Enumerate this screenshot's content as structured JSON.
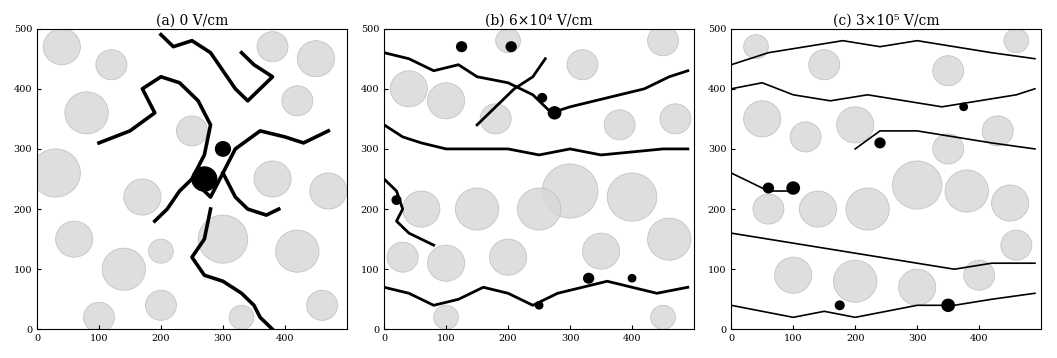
{
  "chart_data": [
    {
      "type": "image",
      "title": "(a) 0 V/cm",
      "color": "#000000",
      "xlim": [
        0,
        500
      ],
      "ylim": [
        0,
        500
      ],
      "xticks": [
        0,
        100,
        200,
        300,
        400
      ],
      "yticks": [
        0,
        100,
        200,
        300,
        400,
        500
      ],
      "circles": [
        [
          40,
          470,
          30
        ],
        [
          120,
          440,
          25
        ],
        [
          80,
          360,
          35
        ],
        [
          30,
          260,
          40
        ],
        [
          60,
          150,
          30
        ],
        [
          140,
          100,
          35
        ],
        [
          200,
          40,
          25
        ],
        [
          300,
          150,
          40
        ],
        [
          380,
          250,
          30
        ],
        [
          420,
          130,
          35
        ],
        [
          460,
          40,
          25
        ],
        [
          450,
          450,
          30
        ],
        [
          380,
          470,
          25
        ],
        [
          250,
          330,
          25
        ],
        [
          170,
          220,
          30
        ],
        [
          330,
          20,
          20
        ],
        [
          470,
          230,
          30
        ],
        [
          100,
          20,
          25
        ],
        [
          200,
          130,
          20
        ],
        [
          420,
          380,
          25
        ]
      ],
      "paths": [
        [
          [
            100,
            310
          ],
          [
            150,
            330
          ],
          [
            190,
            360
          ],
          [
            170,
            400
          ],
          [
            200,
            420
          ],
          [
            230,
            410
          ],
          [
            260,
            380
          ],
          [
            280,
            340
          ],
          [
            270,
            290
          ],
          [
            250,
            250
          ],
          [
            280,
            220
          ],
          [
            300,
            260
          ],
          [
            320,
            300
          ],
          [
            360,
            330
          ],
          [
            400,
            320
          ],
          [
            430,
            310
          ],
          [
            470,
            330
          ]
        ],
        [
          [
            200,
            490
          ],
          [
            220,
            470
          ],
          [
            250,
            480
          ],
          [
            280,
            460
          ],
          [
            300,
            430
          ],
          [
            320,
            400
          ],
          [
            340,
            380
          ],
          [
            360,
            400
          ],
          [
            380,
            420
          ],
          [
            350,
            440
          ],
          [
            330,
            460
          ]
        ],
        [
          [
            250,
            250
          ],
          [
            230,
            230
          ],
          [
            210,
            200
          ],
          [
            190,
            180
          ]
        ],
        [
          [
            300,
            260
          ],
          [
            320,
            220
          ],
          [
            340,
            200
          ],
          [
            370,
            190
          ],
          [
            390,
            200
          ]
        ],
        [
          [
            280,
            200
          ],
          [
            270,
            150
          ],
          [
            250,
            120
          ],
          [
            270,
            90
          ],
          [
            300,
            80
          ],
          [
            330,
            60
          ],
          [
            350,
            40
          ],
          [
            360,
            20
          ],
          [
            380,
            0
          ]
        ]
      ],
      "blobs": [
        [
          270,
          250,
          20
        ],
        [
          300,
          300,
          12
        ]
      ]
    },
    {
      "type": "image",
      "title": "(b) 6×10⁴ V/cm",
      "color": "#000000",
      "xlim": [
        0,
        500
      ],
      "ylim": [
        0,
        500
      ],
      "xticks": [
        0,
        100,
        200,
        300,
        400
      ],
      "yticks": [
        0,
        100,
        200,
        300,
        400,
        500
      ],
      "circles": [
        [
          40,
          400,
          30
        ],
        [
          100,
          380,
          30
        ],
        [
          180,
          350,
          25
        ],
        [
          300,
          230,
          45
        ],
        [
          250,
          200,
          35
        ],
        [
          150,
          200,
          35
        ],
        [
          60,
          200,
          30
        ],
        [
          400,
          220,
          40
        ],
        [
          460,
          150,
          35
        ],
        [
          350,
          130,
          30
        ],
        [
          200,
          120,
          30
        ],
        [
          100,
          110,
          30
        ],
        [
          30,
          120,
          25
        ],
        [
          470,
          350,
          25
        ],
        [
          380,
          340,
          25
        ],
        [
          320,
          440,
          25
        ],
        [
          450,
          480,
          25
        ],
        [
          200,
          480,
          20
        ],
        [
          100,
          20,
          20
        ],
        [
          450,
          20,
          20
        ]
      ],
      "paths": [
        [
          [
            0,
            460
          ],
          [
            40,
            450
          ],
          [
            80,
            430
          ],
          [
            120,
            440
          ],
          [
            150,
            420
          ],
          [
            200,
            410
          ],
          [
            240,
            390
          ],
          [
            270,
            360
          ],
          [
            300,
            370
          ],
          [
            340,
            380
          ],
          [
            380,
            390
          ],
          [
            420,
            400
          ],
          [
            460,
            420
          ],
          [
            490,
            430
          ]
        ],
        [
          [
            0,
            340
          ],
          [
            30,
            320
          ],
          [
            60,
            310
          ],
          [
            100,
            300
          ],
          [
            150,
            300
          ],
          [
            200,
            300
          ],
          [
            250,
            290
          ],
          [
            300,
            300
          ],
          [
            350,
            290
          ],
          [
            400,
            295
          ],
          [
            450,
            300
          ],
          [
            490,
            300
          ]
        ],
        [
          [
            0,
            250
          ],
          [
            20,
            230
          ],
          [
            30,
            200
          ],
          [
            20,
            180
          ],
          [
            40,
            160
          ],
          [
            80,
            140
          ]
        ],
        [
          [
            0,
            70
          ],
          [
            40,
            60
          ],
          [
            80,
            40
          ],
          [
            120,
            50
          ],
          [
            160,
            70
          ],
          [
            200,
            60
          ],
          [
            240,
            40
          ],
          [
            280,
            60
          ],
          [
            320,
            70
          ],
          [
            360,
            80
          ],
          [
            400,
            70
          ],
          [
            440,
            60
          ],
          [
            490,
            70
          ]
        ],
        [
          [
            150,
            340
          ],
          [
            180,
            370
          ],
          [
            210,
            400
          ],
          [
            240,
            420
          ],
          [
            260,
            450
          ]
        ]
      ],
      "blobs": [
        [
          125,
          470,
          8
        ],
        [
          205,
          470,
          8
        ],
        [
          275,
          360,
          10
        ],
        [
          255,
          385,
          7
        ],
        [
          20,
          215,
          7
        ],
        [
          330,
          85,
          8
        ],
        [
          400,
          85,
          6
        ],
        [
          250,
          40,
          6
        ]
      ]
    },
    {
      "type": "image",
      "title": "(c) 3×10⁵ V/cm",
      "color": "#000000",
      "xlim": [
        0,
        500
      ],
      "ylim": [
        0,
        500
      ],
      "xticks": [
        0,
        100,
        200,
        300,
        400
      ],
      "yticks": [
        0,
        100,
        200,
        300,
        400,
        500
      ],
      "circles": [
        [
          50,
          350,
          30
        ],
        [
          120,
          320,
          25
        ],
        [
          200,
          340,
          30
        ],
        [
          300,
          240,
          40
        ],
        [
          380,
          230,
          35
        ],
        [
          450,
          210,
          30
        ],
        [
          220,
          200,
          35
        ],
        [
          140,
          200,
          30
        ],
        [
          60,
          200,
          25
        ],
        [
          100,
          90,
          30
        ],
        [
          200,
          80,
          35
        ],
        [
          300,
          70,
          30
        ],
        [
          400,
          90,
          25
        ],
        [
          460,
          140,
          25
        ],
        [
          350,
          300,
          25
        ],
        [
          430,
          330,
          25
        ],
        [
          150,
          440,
          25
        ],
        [
          350,
          430,
          25
        ],
        [
          40,
          470,
          20
        ],
        [
          460,
          480,
          20
        ]
      ],
      "paths": [
        [
          [
            0,
            440
          ],
          [
            60,
            460
          ],
          [
            120,
            470
          ],
          [
            180,
            480
          ],
          [
            240,
            470
          ],
          [
            300,
            480
          ],
          [
            360,
            470
          ],
          [
            420,
            460
          ],
          [
            490,
            450
          ]
        ],
        [
          [
            0,
            400
          ],
          [
            50,
            410
          ],
          [
            100,
            390
          ],
          [
            160,
            380
          ],
          [
            220,
            390
          ],
          [
            280,
            380
          ],
          [
            340,
            370
          ],
          [
            400,
            380
          ],
          [
            460,
            390
          ],
          [
            490,
            400
          ]
        ],
        [
          [
            0,
            260
          ],
          [
            20,
            250
          ],
          [
            40,
            240
          ],
          [
            60,
            230
          ],
          [
            100,
            230
          ]
        ],
        [
          [
            0,
            160
          ],
          [
            60,
            150
          ],
          [
            120,
            140
          ],
          [
            180,
            130
          ],
          [
            240,
            120
          ],
          [
            300,
            110
          ],
          [
            360,
            100
          ],
          [
            420,
            110
          ],
          [
            490,
            110
          ]
        ],
        [
          [
            0,
            40
          ],
          [
            50,
            30
          ],
          [
            100,
            20
          ],
          [
            150,
            30
          ],
          [
            200,
            20
          ],
          [
            250,
            30
          ],
          [
            300,
            40
          ],
          [
            360,
            40
          ],
          [
            420,
            50
          ],
          [
            490,
            60
          ]
        ],
        [
          [
            200,
            300
          ],
          [
            240,
            330
          ],
          [
            300,
            330
          ],
          [
            360,
            320
          ],
          [
            420,
            310
          ],
          [
            490,
            300
          ]
        ]
      ],
      "blobs": [
        [
          100,
          235,
          10
        ],
        [
          60,
          235,
          8
        ],
        [
          240,
          310,
          8
        ],
        [
          175,
          40,
          7
        ],
        [
          350,
          40,
          10
        ],
        [
          375,
          370,
          6
        ]
      ]
    }
  ]
}
